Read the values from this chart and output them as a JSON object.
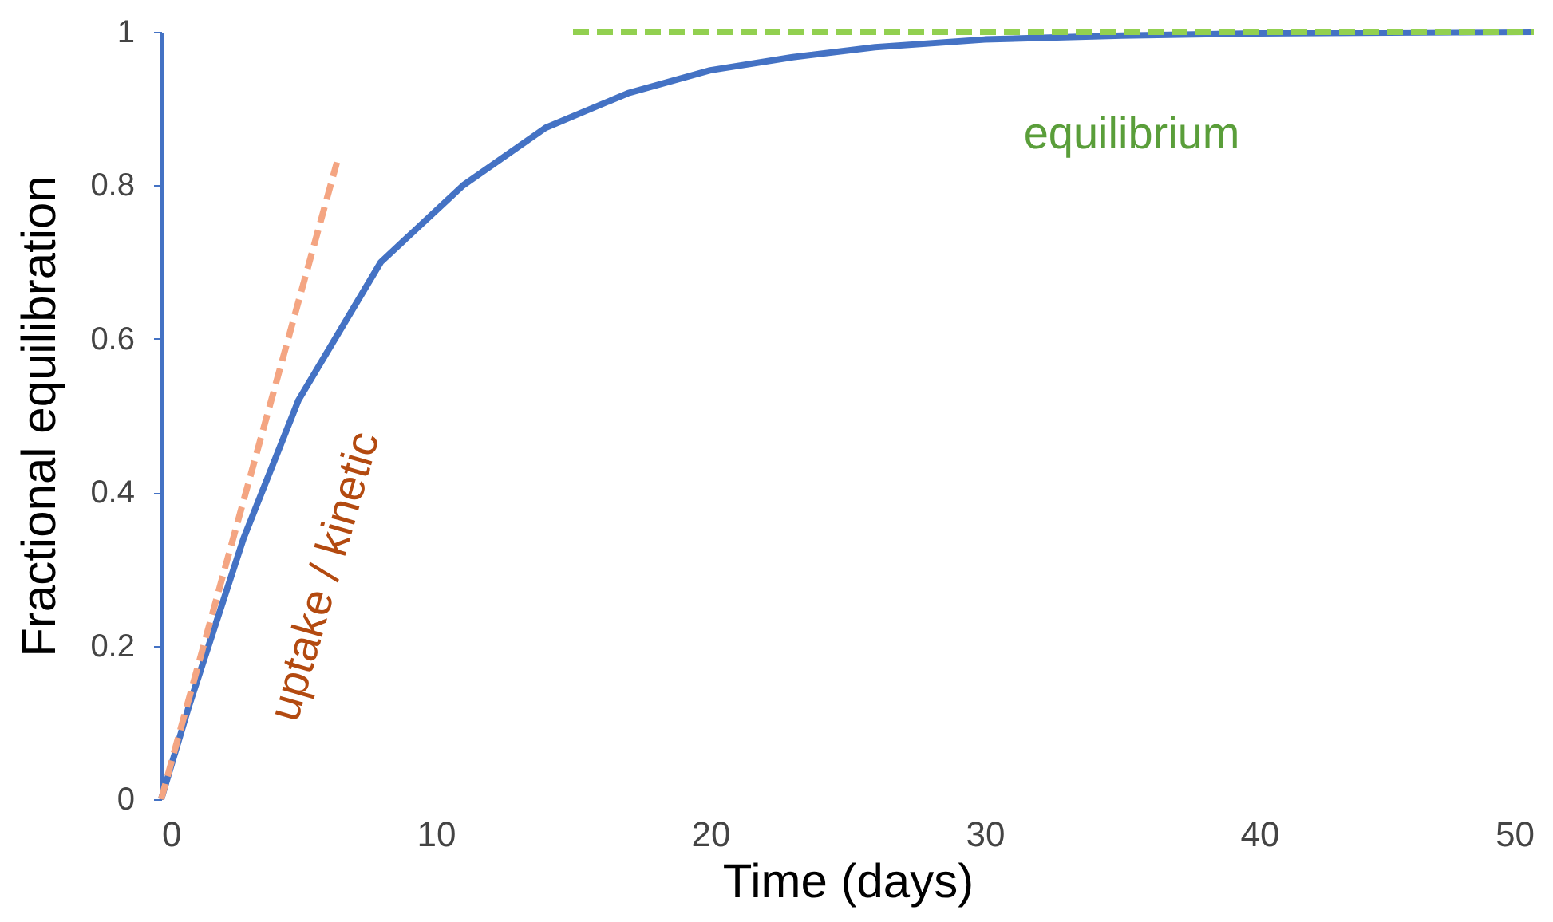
{
  "chart_data": {
    "type": "line",
    "xlabel": "Time (days)",
    "ylabel": "Fractional equilibration",
    "xlim": [
      0,
      50
    ],
    "xticks": [
      0,
      10,
      20,
      30,
      40,
      50
    ],
    "ylim": [
      0,
      1
    ],
    "yticks": [
      0,
      0.2,
      0.4,
      0.6,
      0.8,
      1
    ],
    "grid": false,
    "marker": "none",
    "series": [
      {
        "color": "#4472c4",
        "line_style": "solid",
        "x": [
          0,
          1,
          2,
          3,
          5,
          8,
          11,
          14,
          17,
          20,
          23,
          26,
          30,
          35,
          40,
          50
        ],
        "values": [
          0,
          0.12,
          0.23,
          0.34,
          0.52,
          0.7,
          0.8,
          0.875,
          0.92,
          0.95,
          0.967,
          0.98,
          0.99,
          0.995,
          0.998,
          1
        ]
      },
      {
        "color": "#f4a582",
        "line_style": "dashed",
        "x": [
          0,
          6.4
        ],
        "values": [
          0,
          0.83
        ]
      },
      {
        "color": "#92d050",
        "line_style": "dashed",
        "x": [
          15,
          50
        ],
        "values": [
          1,
          1
        ]
      }
    ],
    "annotations": [
      "uptake / kinetic",
      "equilibrium"
    ]
  }
}
